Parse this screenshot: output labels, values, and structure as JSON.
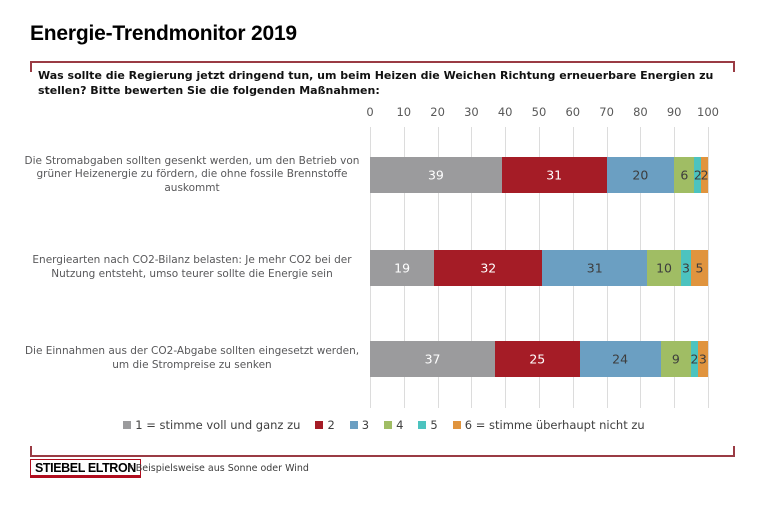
{
  "title": "Energie-Trendmonitor 2019",
  "question": "Was sollte die Regierung jetzt dringend tun, um beim Heizen die Weichen Richtung erneuerbare Energien zu stellen? Bitte bewerten Sie die folgenden Maßnahmen:",
  "chart_data": {
    "type": "bar",
    "orientation": "horizontal",
    "stacked": true,
    "axis": {
      "position": "top",
      "min": 0,
      "max": 100,
      "step": 10,
      "tick_labels": [
        "0",
        "10",
        "20",
        "30",
        "40",
        "50",
        "60",
        "70",
        "80",
        "90",
        "100"
      ]
    },
    "grid": true,
    "legend_position": "bottom",
    "categories": [
      "Die Stromabgaben sollten gesenkt werden, um den Betrieb von grüner Heizenergie zu fördern, die ohne fossile Brennstoffe auskommt",
      "Energiearten nach CO2-Bilanz belasten: Je mehr CO2 bei der Nutzung entsteht, umso teurer sollte die Energie sein",
      "Die Einnahmen aus der CO2-Abgabe sollten eingesetzt werden, um die Strompreise zu senken"
    ],
    "series": [
      {
        "name": "1 = stimme voll und ganz zu",
        "color": "#9b9b9d",
        "text_color": "#ffffff",
        "values": [
          39,
          19,
          37
        ]
      },
      {
        "name": "2",
        "color": "#a51c26",
        "text_color": "#ffffff",
        "values": [
          31,
          32,
          25
        ]
      },
      {
        "name": "3",
        "color": "#6b9fc2",
        "text_color": "#3d3d3d",
        "values": [
          20,
          31,
          24
        ]
      },
      {
        "name": "4",
        "color": "#a0bd64",
        "text_color": "#3d3d3d",
        "values": [
          6,
          10,
          9
        ]
      },
      {
        "name": "5",
        "color": "#4cc3bf",
        "text_color": "#3d3d3d",
        "values": [
          2,
          3,
          2
        ]
      },
      {
        "name": "6 = stimme überhaupt nicht zu",
        "color": "#e0943e",
        "text_color": "#3d3d3d",
        "values": [
          2,
          5,
          3
        ]
      }
    ]
  },
  "footer": {
    "logo": "STIEBEL ELTRON",
    "footnote": "* Beispielsweise aus Sonne oder Wind"
  },
  "colors": {
    "frame": "#9a3b44",
    "grid": "#dcdcdc",
    "axis_text": "#595959",
    "category_text": "#58585a",
    "legend_text": "#404040",
    "logo_red": "#b00d1e"
  }
}
